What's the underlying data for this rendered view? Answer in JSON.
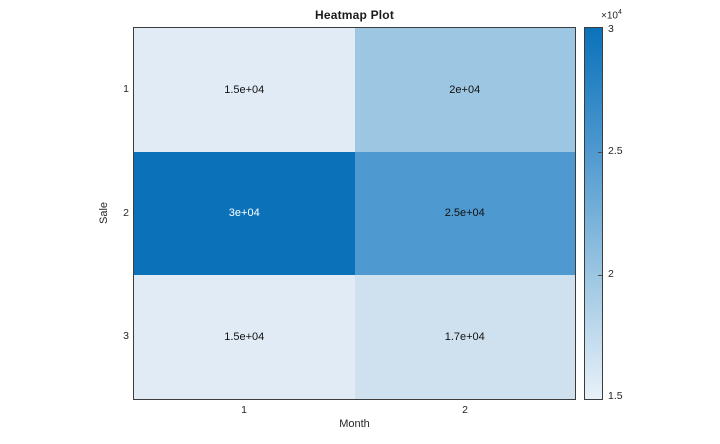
{
  "figure": {
    "background": "#ffffff",
    "axis_color": "#3c3c3c",
    "text_color": "#262626"
  },
  "chart_data": {
    "type": "heatmap",
    "title": "Heatmap Plot",
    "xlabel": "Month",
    "ylabel": "Sale",
    "x_categories": [
      "1",
      "2"
    ],
    "y_categories": [
      "1",
      "2",
      "3"
    ],
    "values": [
      [
        15000,
        20000
      ],
      [
        30000,
        25000
      ],
      [
        15000,
        17000
      ]
    ],
    "cell_labels": [
      [
        "1.5e+04",
        "2e+04"
      ],
      [
        "3e+04",
        "2.5e+04"
      ],
      [
        "1.5e+04",
        "1.7e+04"
      ]
    ],
    "cell_colors": [
      [
        "#e0ebf5",
        "#9cc6e2"
      ],
      [
        "#0b72ba",
        "#4e99cf"
      ],
      [
        "#e0ebf5",
        "#cfe0ee"
      ]
    ],
    "cell_text_colors": [
      [
        "#111111",
        "#111111"
      ],
      [
        "#ffffff",
        "#111111"
      ],
      [
        "#111111",
        "#111111"
      ]
    ],
    "value_range": [
      15000,
      30000
    ],
    "colormap": "blues",
    "legend_position": "right-colorbar",
    "grid": false,
    "colorbar": {
      "multiplier": "×10",
      "exponent": "4",
      "ticks": [
        "3",
        "2.5",
        "2",
        "1.5"
      ],
      "tick_values": [
        30000,
        25000,
        20000,
        15000
      ],
      "gradient_stops": [
        "#0b72ba",
        "#4e99cf",
        "#9cc6e2",
        "#e8f1f9"
      ]
    }
  }
}
